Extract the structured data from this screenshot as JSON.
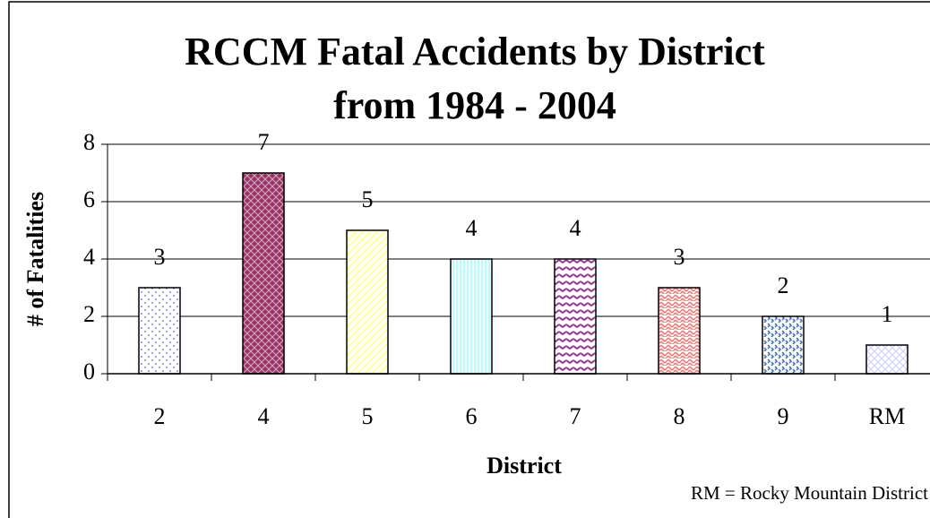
{
  "chart_data": {
    "type": "bar",
    "title": "RCCM Fatal Accidents by District",
    "subtitle": "from 1984 - 2004",
    "x_label": "District",
    "y_label": "# of Fatalities",
    "annotation": "RM = Rocky Mountain District",
    "categories": [
      "2",
      "4",
      "5",
      "6",
      "7",
      "8",
      "9",
      "RM"
    ],
    "values": [
      3,
      7,
      5,
      4,
      4,
      3,
      2,
      1
    ],
    "colors": [
      "#8080ff",
      "#993366",
      "#ffff99",
      "#99ffff",
      "#993399",
      "#ff6666",
      "#3366cc",
      "#ccccff"
    ],
    "ylim": [
      0,
      8
    ],
    "yticks": [
      0,
      2,
      4,
      6,
      8
    ],
    "grid": true
  }
}
